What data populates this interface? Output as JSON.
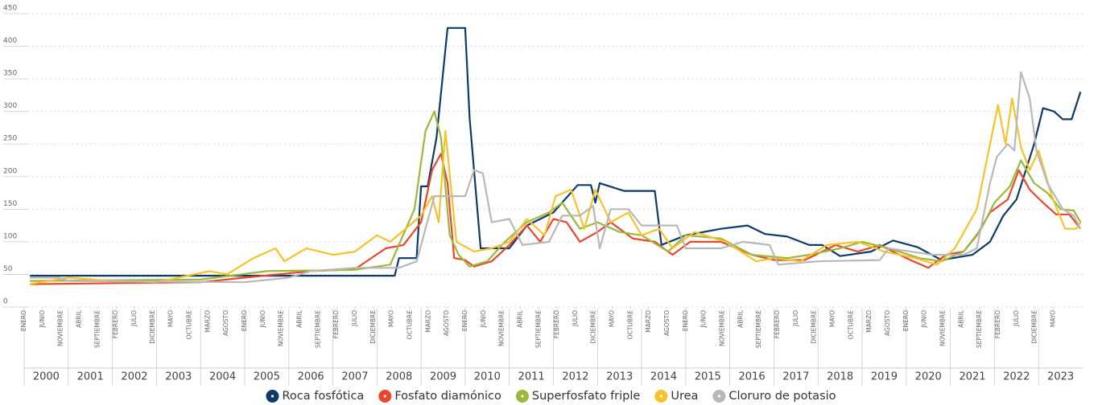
{
  "chart_data": {
    "type": "line",
    "ylim": [
      0,
      450
    ],
    "yticks": [
      0,
      50,
      100,
      150,
      200,
      250,
      300,
      350,
      400,
      450
    ],
    "xlim": [
      2000,
      2024
    ],
    "grid": true,
    "years": [
      2000,
      2001,
      2002,
      2003,
      2004,
      2005,
      2006,
      2007,
      2008,
      2009,
      2010,
      2011,
      2012,
      2013,
      2014,
      2015,
      2016,
      2017,
      2018,
      2019,
      2020,
      2021,
      2022,
      2023
    ],
    "xticks": [
      {
        "value": 2000.0,
        "label": "ENERO"
      },
      {
        "value": 2000.417,
        "label": "JUNIO"
      },
      {
        "value": 2000.833,
        "label": "NOVIEMBRE"
      },
      {
        "value": 2001.25,
        "label": "ABRIL"
      },
      {
        "value": 2001.667,
        "label": "SEPTIEMBRE"
      },
      {
        "value": 2002.083,
        "label": "FEBRERO"
      },
      {
        "value": 2002.5,
        "label": "JULIO"
      },
      {
        "value": 2002.917,
        "label": "DICIEMBRE"
      },
      {
        "value": 2003.333,
        "label": "MAYO"
      },
      {
        "value": 2003.75,
        "label": "OCTUBRE"
      },
      {
        "value": 2004.167,
        "label": "MARZO"
      },
      {
        "value": 2004.583,
        "label": "AGOSTO"
      },
      {
        "value": 2005.0,
        "label": "ENERO"
      },
      {
        "value": 2005.417,
        "label": "JUNIO"
      },
      {
        "value": 2005.833,
        "label": "NOVIEMBRE"
      },
      {
        "value": 2006.25,
        "label": "ABRIL"
      },
      {
        "value": 2006.667,
        "label": "SEPTIEMBRE"
      },
      {
        "value": 2007.083,
        "label": "FEBRERO"
      },
      {
        "value": 2007.5,
        "label": "JULIO"
      },
      {
        "value": 2007.917,
        "label": "DICIEMBRE"
      },
      {
        "value": 2008.333,
        "label": "MAYO"
      },
      {
        "value": 2008.75,
        "label": "OCTUBRE"
      },
      {
        "value": 2009.167,
        "label": "MARZO"
      },
      {
        "value": 2009.583,
        "label": "AGOSTO"
      },
      {
        "value": 2010.0,
        "label": "ENERO"
      },
      {
        "value": 2010.417,
        "label": "JUNIO"
      },
      {
        "value": 2010.833,
        "label": "NOVIEMBRE"
      },
      {
        "value": 2011.25,
        "label": "ABRIL"
      },
      {
        "value": 2011.667,
        "label": "SEPTIEMBRE"
      },
      {
        "value": 2012.083,
        "label": "FEBRERO"
      },
      {
        "value": 2012.5,
        "label": "JULIO"
      },
      {
        "value": 2012.917,
        "label": "DICIEMBRE"
      },
      {
        "value": 2013.333,
        "label": "MAYO"
      },
      {
        "value": 2013.75,
        "label": "OCTUBRE"
      },
      {
        "value": 2014.167,
        "label": "MARZO"
      },
      {
        "value": 2014.583,
        "label": "AGOSTO"
      },
      {
        "value": 2015.0,
        "label": "ENERO"
      },
      {
        "value": 2015.417,
        "label": "JUNIO"
      },
      {
        "value": 2015.833,
        "label": "NOVIEMBRE"
      },
      {
        "value": 2016.25,
        "label": "ABRIL"
      },
      {
        "value": 2016.667,
        "label": "SEPTIEMBRE"
      },
      {
        "value": 2017.083,
        "label": "FEBRERO"
      },
      {
        "value": 2017.5,
        "label": "JULIO"
      },
      {
        "value": 2017.917,
        "label": "DICIEMBRE"
      },
      {
        "value": 2018.333,
        "label": "MAYO"
      },
      {
        "value": 2018.75,
        "label": "OCTUBRE"
      },
      {
        "value": 2019.167,
        "label": "MARZO"
      },
      {
        "value": 2019.583,
        "label": "AGOSTO"
      },
      {
        "value": 2020.0,
        "label": "ENERO"
      },
      {
        "value": 2020.417,
        "label": "JUNIO"
      },
      {
        "value": 2020.833,
        "label": "NOVIEMBRE"
      },
      {
        "value": 2021.25,
        "label": "ABRIL"
      },
      {
        "value": 2021.667,
        "label": "SEPTIEMBRE"
      },
      {
        "value": 2022.083,
        "label": "FEBRERO"
      },
      {
        "value": 2022.5,
        "label": "JULIO"
      },
      {
        "value": 2022.917,
        "label": "DICIEMBRE"
      },
      {
        "value": 2023.333,
        "label": "MAYO"
      }
    ],
    "series": [
      {
        "name": "Roca fosfótica",
        "color": "#0f3a68",
        "x": [
          2000.13,
          2008.4,
          2008.5,
          2008.9,
          2009.0,
          2009.15,
          2009.35,
          2009.6,
          2010.0,
          2010.1,
          2010.35,
          2011.0,
          2011.4,
          2012.0,
          2012.55,
          2012.85,
          2012.95,
          2013.05,
          2013.6,
          2014.3,
          2014.45,
          2015.0,
          2015.8,
          2016.4,
          2016.8,
          2017.3,
          2017.8,
          2018.1,
          2018.5,
          2019.2,
          2019.7,
          2020.25,
          2020.8,
          2021.5,
          2021.9,
          2022.2,
          2022.5,
          2022.9,
          2023.1,
          2023.35,
          2023.55,
          2023.75,
          2023.95
        ],
        "values": [
          48,
          48,
          75,
          75,
          185,
          185,
          260,
          428,
          428,
          290,
          90,
          90,
          125,
          145,
          187,
          187,
          160,
          190,
          178,
          178,
          95,
          110,
          120,
          125,
          112,
          108,
          95,
          95,
          78,
          85,
          102,
          92,
          72,
          80,
          100,
          140,
          165,
          250,
          305,
          300,
          288,
          288,
          330
        ]
      },
      {
        "name": "Fosfato diamónico",
        "color": "#e8472b",
        "x": [
          2000.13,
          2004.0,
          2005.0,
          2006.5,
          2007.5,
          2008.2,
          2008.6,
          2009.0,
          2009.25,
          2009.45,
          2009.6,
          2009.75,
          2010.0,
          2010.2,
          2010.6,
          2011.0,
          2011.4,
          2011.7,
          2012.0,
          2012.3,
          2012.6,
          2013.0,
          2013.3,
          2013.8,
          2014.3,
          2014.7,
          2015.1,
          2015.8,
          2016.5,
          2017.0,
          2017.7,
          2018.4,
          2018.9,
          2019.4,
          2020.0,
          2020.5,
          2020.9,
          2021.3,
          2021.6,
          2021.9,
          2022.3,
          2022.55,
          2022.8,
          2023.1,
          2023.4,
          2023.7,
          2023.95
        ],
        "values": [
          35,
          38,
          45,
          55,
          58,
          90,
          95,
          130,
          210,
          235,
          190,
          75,
          72,
          62,
          70,
          95,
          125,
          100,
          135,
          130,
          100,
          115,
          130,
          105,
          100,
          80,
          100,
          100,
          80,
          72,
          72,
          95,
          85,
          95,
          75,
          60,
          80,
          85,
          110,
          145,
          165,
          210,
          180,
          160,
          142,
          142,
          120
        ]
      },
      {
        "name": "Superfosfato friple",
        "color": "#9bb83a",
        "x": [
          2000.13,
          2004.0,
          2005.5,
          2007.5,
          2008.3,
          2008.85,
          2009.1,
          2009.3,
          2009.45,
          2009.65,
          2009.85,
          2010.1,
          2010.5,
          2010.9,
          2011.4,
          2011.9,
          2012.2,
          2012.6,
          2013.0,
          2013.5,
          2014.0,
          2014.6,
          2015.0,
          2015.8,
          2016.5,
          2017.3,
          2017.8,
          2018.5,
          2019.0,
          2019.6,
          2020.3,
          2020.8,
          2021.3,
          2021.7,
          2022.0,
          2022.35,
          2022.6,
          2022.9,
          2023.2,
          2023.5,
          2023.8,
          2023.95
        ],
        "values": [
          40,
          42,
          55,
          57,
          65,
          150,
          270,
          300,
          260,
          110,
          80,
          62,
          70,
          100,
          130,
          145,
          160,
          120,
          130,
          115,
          110,
          85,
          110,
          105,
          80,
          75,
          80,
          90,
          100,
          90,
          75,
          70,
          85,
          120,
          160,
          185,
          225,
          190,
          175,
          150,
          148,
          130
        ]
      },
      {
        "name": "Urea",
        "color": "#f6c22b",
        "x": [
          2000.13,
          2001.0,
          2002.0,
          2003.0,
          2003.5,
          2004.2,
          2004.6,
          2005.2,
          2005.7,
          2005.9,
          2006.4,
          2007.0,
          2007.5,
          2008.0,
          2008.3,
          2009.0,
          2009.25,
          2009.4,
          2009.55,
          2009.8,
          2010.2,
          2010.6,
          2011.0,
          2011.4,
          2011.8,
          2012.05,
          2012.4,
          2012.7,
          2012.95,
          2013.3,
          2013.7,
          2014.0,
          2014.4,
          2014.7,
          2015.2,
          2015.9,
          2016.6,
          2017.0,
          2017.6,
          2018.2,
          2018.9,
          2019.5,
          2020.2,
          2020.7,
          2021.1,
          2021.6,
          2022.08,
          2022.25,
          2022.4,
          2022.6,
          2022.8,
          2023.0,
          2023.3,
          2023.6,
          2023.85,
          2023.95
        ],
        "values": [
          35,
          45,
          40,
          38,
          45,
          55,
          50,
          75,
          90,
          70,
          90,
          80,
          85,
          110,
          100,
          140,
          170,
          130,
          270,
          100,
          85,
          90,
          100,
          135,
          110,
          170,
          180,
          120,
          180,
          130,
          145,
          110,
          120,
          90,
          115,
          100,
          70,
          75,
          70,
          95,
          100,
          85,
          75,
          65,
          90,
          150,
          310,
          250,
          320,
          245,
          210,
          240,
          170,
          120,
          120,
          130
        ]
      },
      {
        "name": "Cloruro de potasio",
        "color": "#b8b8b8",
        "x": [
          2000.13,
          2000.8,
          2001.0,
          2005.0,
          2006.0,
          2006.5,
          2007.5,
          2008.5,
          2008.9,
          2009.3,
          2010.0,
          2010.2,
          2010.4,
          2010.6,
          2011.0,
          2011.3,
          2011.9,
          2012.2,
          2012.6,
          2012.9,
          2013.05,
          2013.3,
          2013.7,
          2014.0,
          2014.8,
          2015.0,
          2015.8,
          2016.3,
          2016.9,
          2017.1,
          2018.0,
          2019.4,
          2019.6,
          2020.6,
          2021.3,
          2021.6,
          2021.9,
          2022.05,
          2022.3,
          2022.45,
          2022.6,
          2022.8,
          2022.95,
          2023.2,
          2023.55,
          2023.8,
          2023.95
        ],
        "values": [
          45,
          45,
          40,
          38,
          45,
          55,
          60,
          60,
          70,
          170,
          170,
          210,
          205,
          130,
          135,
          95,
          100,
          140,
          140,
          155,
          90,
          150,
          150,
          125,
          125,
          90,
          90,
          100,
          95,
          65,
          70,
          72,
          90,
          80,
          80,
          90,
          190,
          230,
          250,
          240,
          360,
          320,
          240,
          190,
          150,
          140,
          120
        ]
      }
    ]
  }
}
